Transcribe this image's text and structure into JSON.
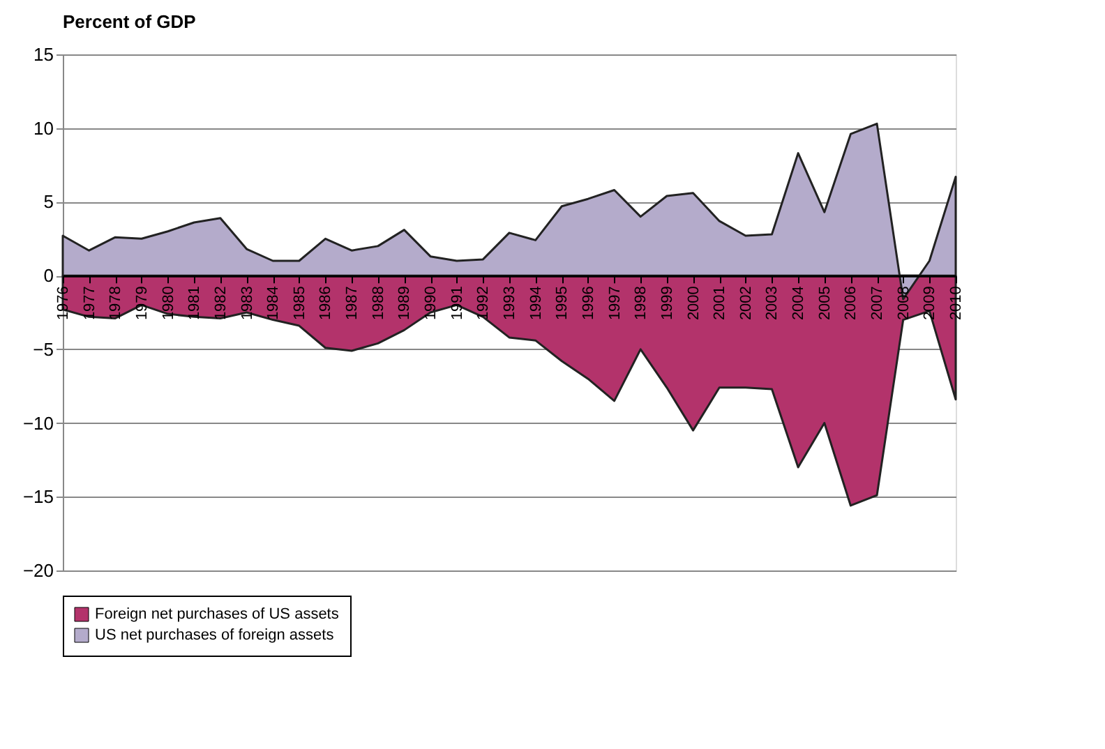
{
  "chart_data": {
    "type": "area",
    "title": "Percent of GDP",
    "categories": [
      "1976",
      "1977",
      "1978",
      "1979",
      "1980",
      "1981",
      "1982",
      "1983",
      "1984",
      "1985",
      "1986",
      "1987",
      "1988",
      "1989",
      "1990",
      "1991",
      "1992",
      "1993",
      "1994",
      "1995",
      "1996",
      "1997",
      "1998",
      "1999",
      "2000",
      "2001",
      "2002",
      "2003",
      "2004",
      "2005",
      "2006",
      "2007",
      "2008",
      "2009",
      "2010"
    ],
    "series": [
      {
        "name": "Foreign net purchases of US assets",
        "color": "#b3336b",
        "values": [
          -2.3,
          -2.8,
          -2.9,
          -2.0,
          -2.6,
          -2.8,
          -2.9,
          -2.5,
          -3.0,
          -3.4,
          -4.9,
          -5.1,
          -4.6,
          -3.7,
          -2.5,
          -2.0,
          -2.8,
          -4.2,
          -4.4,
          -5.8,
          -7.0,
          -8.5,
          -5.0,
          -7.6,
          -10.5,
          -7.6,
          -7.6,
          -7.7,
          -13.0,
          -10.0,
          -15.6,
          -14.9,
          -3.0,
          -2.4,
          -8.4
        ]
      },
      {
        "name": "US net purchases of foreign assets",
        "color": "#b4abcb",
        "values": [
          2.7,
          1.7,
          2.6,
          2.5,
          3.0,
          3.6,
          3.9,
          1.8,
          1.0,
          1.0,
          2.5,
          1.7,
          2.0,
          3.1,
          1.3,
          1.0,
          1.1,
          2.9,
          2.4,
          4.7,
          5.2,
          5.8,
          4.0,
          5.4,
          5.6,
          3.7,
          2.7,
          2.8,
          8.3,
          4.3,
          9.6,
          10.3,
          -1.6,
          1.0,
          6.7
        ]
      }
    ],
    "ylim": [
      -20,
      15
    ],
    "yticks": [
      -20,
      -15,
      -10,
      -5,
      0,
      5,
      10,
      15
    ],
    "grid": "y",
    "legend": "bottom"
  }
}
